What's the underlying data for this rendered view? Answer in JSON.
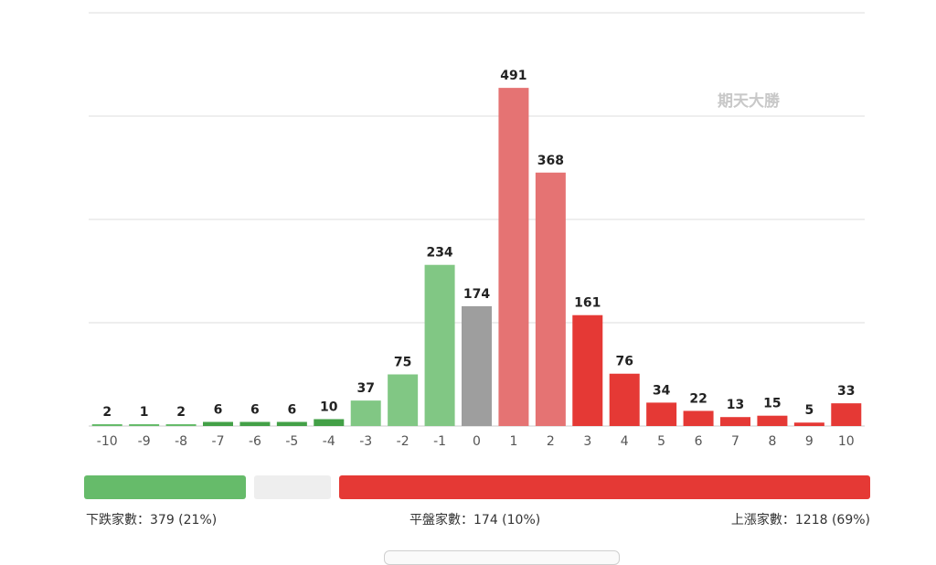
{
  "chart_data": {
    "type": "bar",
    "categories": [
      "-10",
      "-9",
      "-8",
      "-7",
      "-6",
      "-5",
      "-4",
      "-3",
      "-2",
      "-1",
      "0",
      "1",
      "2",
      "3",
      "4",
      "5",
      "6",
      "7",
      "8",
      "9",
      "10"
    ],
    "values": [
      2,
      1,
      2,
      6,
      6,
      6,
      10,
      37,
      75,
      234,
      174,
      491,
      368,
      161,
      76,
      34,
      22,
      13,
      15,
      5,
      33
    ],
    "bar_colors": [
      "#66bb6a",
      "#66bb6a",
      "#66bb6a",
      "#43a047",
      "#43a047",
      "#43a047",
      "#43a047",
      "#81c784",
      "#81c784",
      "#81c784",
      "#9e9e9e",
      "#e57373",
      "#e57373",
      "#e53935",
      "#e53935",
      "#e53935",
      "#e53935",
      "#e53935",
      "#e53935",
      "#e53935",
      "#e53935"
    ],
    "ylim": [
      0,
      600
    ],
    "grid": true,
    "watermark": "期天大勝"
  },
  "summary": {
    "down": {
      "label": "下跌家數：379 (21%)",
      "color": "#66bb6a",
      "share": 0.21
    },
    "flat": {
      "label": "平盤家數：174 (10%)",
      "color": "#eeeeee",
      "share": 0.1
    },
    "up": {
      "label": "上漲家數：1218 (69%)",
      "color": "#e53935",
      "share": 0.69
    }
  }
}
